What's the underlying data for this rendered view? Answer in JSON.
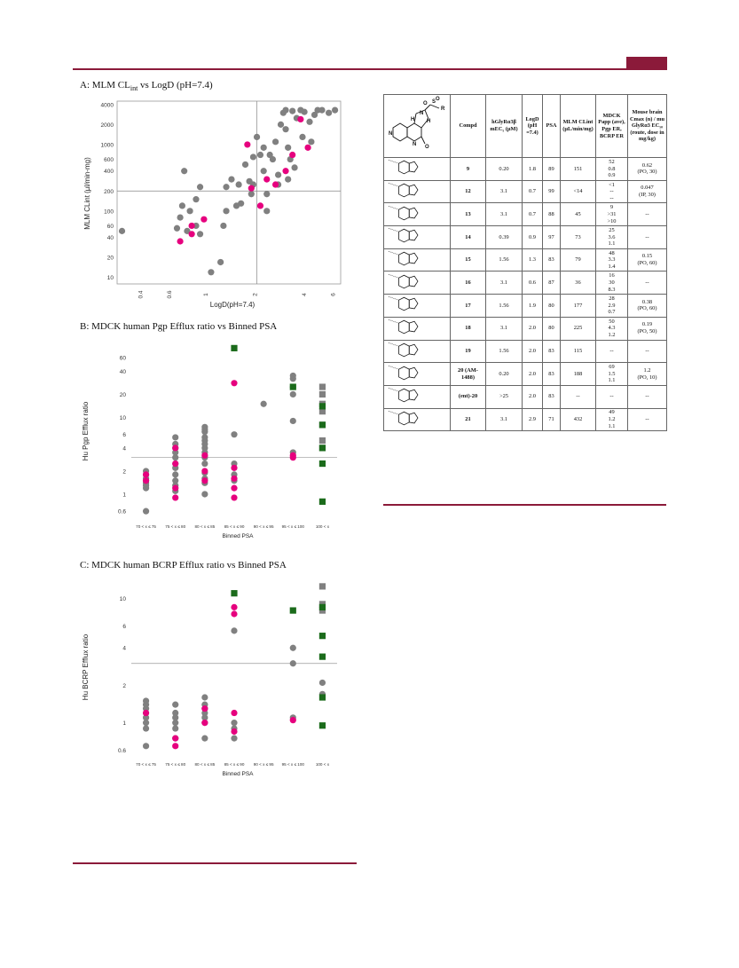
{
  "panels": {
    "a_title_prefix": "A: MLM CL",
    "a_title_sub": "int",
    "a_title_suffix": " vs LogD (pH=7.4)",
    "b_title": "B: MDCK human Pgp Efflux ratio vs Binned PSA",
    "c_title": "C: MDCK human BCRP Efflux ratio vs Binned PSA"
  },
  "chart_data": [
    {
      "type": "scatter",
      "title": "A: MLM CLint vs LogD (pH=7.4)",
      "xlabel": "LogD(pH=7.4)",
      "ylabel": "MLM CLint (µl/min-mg)",
      "xscale": "log",
      "yscale": "log",
      "xlim": [
        0.28,
        6.5
      ],
      "ylim": [
        8,
        4500
      ],
      "xticks": [
        "0.4",
        "0.6",
        "1",
        "2",
        "4",
        "6"
      ],
      "yticks": [
        "10",
        "20",
        "40",
        "60",
        "100",
        "200",
        "400",
        "600",
        "1000",
        "2000",
        "4000"
      ],
      "threshold_x": 2,
      "threshold_y": 200,
      "colors": {
        "reference": "#808080",
        "highlight": "#e6007e"
      },
      "series": [
        {
          "marker": "circle",
          "color": "#808080",
          "points": [
            [
              0.3,
              50
            ],
            [
              0.72,
              400
            ],
            [
              0.7,
              120
            ],
            [
              0.68,
              80
            ],
            [
              0.65,
              55
            ],
            [
              0.75,
              50
            ],
            [
              0.78,
              100
            ],
            [
              0.85,
              150
            ],
            [
              0.9,
              230
            ],
            [
              0.85,
              60
            ],
            [
              0.9,
              45
            ],
            [
              1.05,
              12
            ],
            [
              1.2,
              17
            ],
            [
              1.25,
              60
            ],
            [
              1.3,
              100
            ],
            [
              1.3,
              230
            ],
            [
              1.4,
              300
            ],
            [
              1.5,
              120
            ],
            [
              1.55,
              250
            ],
            [
              1.7,
              500
            ],
            [
              1.8,
              280
            ],
            [
              1.85,
              180
            ],
            [
              1.9,
              650
            ],
            [
              2.0,
              1300
            ],
            [
              2.1,
              700
            ],
            [
              2.2,
              400
            ],
            [
              2.3,
              180
            ],
            [
              2.3,
              100
            ],
            [
              2.5,
              600
            ],
            [
              2.6,
              1100
            ],
            [
              2.7,
              250
            ],
            [
              2.7,
              350
            ],
            [
              2.8,
              2000
            ],
            [
              2.9,
              3000
            ],
            [
              3.0,
              3300
            ],
            [
              3.0,
              1700
            ],
            [
              3.1,
              900
            ],
            [
              3.2,
              600
            ],
            [
              3.3,
              3200
            ],
            [
              3.5,
              2500
            ],
            [
              3.7,
              3300
            ],
            [
              3.8,
              1300
            ],
            [
              3.9,
              3100
            ],
            [
              4.2,
              2200
            ],
            [
              4.3,
              1100
            ],
            [
              4.5,
              2800
            ],
            [
              4.7,
              3300
            ],
            [
              5.0,
              3300
            ],
            [
              5.5,
              3000
            ],
            [
              6.0,
              3300
            ],
            [
              3.4,
              450
            ],
            [
              2.4,
              700
            ],
            [
              2.2,
              900
            ],
            [
              3.1,
              300
            ],
            [
              1.9,
              250
            ],
            [
              1.6,
              130
            ]
          ]
        },
        {
          "marker": "circle",
          "color": "#e6007e",
          "points": [
            [
              0.68,
              35
            ],
            [
              0.8,
              45
            ],
            [
              0.8,
              60
            ],
            [
              0.95,
              75
            ],
            [
              1.75,
              1000
            ],
            [
              1.85,
              220
            ],
            [
              2.1,
              120
            ],
            [
              2.3,
              300
            ],
            [
              2.6,
              250
            ],
            [
              3.0,
              400
            ],
            [
              3.3,
              700
            ],
            [
              3.7,
              2400
            ],
            [
              4.1,
              900
            ]
          ]
        }
      ]
    },
    {
      "type": "scatter",
      "title": "B: MDCK human Pgp Efflux ratio vs Binned PSA",
      "xlabel": "Binned PSA",
      "ylabel": "Hu Pgp Efflux ratio",
      "yscale": "log",
      "ylim": [
        0.5,
        100
      ],
      "yticks": [
        "0.6",
        "1",
        "2",
        "4",
        "6",
        "10",
        "20",
        "40",
        "60"
      ],
      "categories": [
        "70 < x ≤ 75",
        "75 < x ≤ 80",
        "80 < x ≤ 85",
        "85 < x ≤ 90",
        "90 < x ≤ 95",
        "95 < x ≤ 100",
        "100 < x"
      ],
      "threshold_y": 3,
      "series": [
        {
          "marker": "circle",
          "color": "#808080",
          "points": [
            [
              0,
              2.0
            ],
            [
              0,
              1.8
            ],
            [
              0,
              1.6
            ],
            [
              0,
              1.5
            ],
            [
              0,
              1.4
            ],
            [
              0,
              1.3
            ],
            [
              0,
              1.2
            ],
            [
              0,
              0.6
            ],
            [
              1,
              5.5
            ],
            [
              1,
              4.5
            ],
            [
              1,
              4.0
            ],
            [
              1,
              3.5
            ],
            [
              1,
              3.0
            ],
            [
              1,
              2.5
            ],
            [
              1,
              2.2
            ],
            [
              1,
              1.8
            ],
            [
              1,
              1.5
            ],
            [
              1,
              1.3
            ],
            [
              1,
              1.1
            ],
            [
              2,
              7.5
            ],
            [
              2,
              7.0
            ],
            [
              2,
              6.5
            ],
            [
              2,
              5.5
            ],
            [
              2,
              5.0
            ],
            [
              2,
              4.5
            ],
            [
              2,
              4.0
            ],
            [
              2,
              3.5
            ],
            [
              2,
              3.0
            ],
            [
              2,
              2.5
            ],
            [
              2,
              1.9
            ],
            [
              2,
              1.6
            ],
            [
              2,
              1.4
            ],
            [
              2,
              1.0
            ],
            [
              3,
              6.0
            ],
            [
              3,
              2.5
            ],
            [
              3,
              1.8
            ],
            [
              3,
              1.5
            ],
            [
              4,
              15
            ],
            [
              5,
              35
            ],
            [
              5,
              32
            ],
            [
              5,
              25
            ],
            [
              5,
              20
            ],
            [
              5,
              9
            ],
            [
              5,
              3.5
            ]
          ]
        },
        {
          "marker": "circle",
          "color": "#e6007e",
          "points": [
            [
              0,
              1.8
            ],
            [
              0,
              1.5
            ],
            [
              1,
              4.0
            ],
            [
              1,
              2.5
            ],
            [
              1,
              1.2
            ],
            [
              1,
              0.9
            ],
            [
              2,
              3.2
            ],
            [
              2,
              2.0
            ],
            [
              2,
              1.5
            ],
            [
              3,
              28
            ],
            [
              3,
              2.2
            ],
            [
              3,
              1.6
            ],
            [
              3,
              1.2
            ],
            [
              3,
              0.9
            ],
            [
              5,
              3.2
            ],
            [
              5,
              3.0
            ]
          ]
        },
        {
          "marker": "square",
          "color": "#808080",
          "points": [
            [
              6,
              25
            ],
            [
              6,
              20
            ],
            [
              6,
              15
            ],
            [
              6,
              12
            ],
            [
              6,
              8
            ],
            [
              6,
              5
            ],
            [
              6,
              4
            ]
          ]
        },
        {
          "marker": "square",
          "color": "#1b6b1b",
          "points": [
            [
              3,
              80
            ],
            [
              5,
              25
            ],
            [
              6,
              14
            ],
            [
              6,
              8
            ],
            [
              6,
              4
            ],
            [
              6,
              2.5
            ],
            [
              6,
              0.8
            ]
          ]
        }
      ]
    },
    {
      "type": "scatter",
      "title": "C: MDCK human BCRP Efflux ratio vs Binned PSA",
      "xlabel": "Binned PSA",
      "ylabel": "Hu BCRP Efflux ratio",
      "yscale": "log",
      "ylim": [
        0.55,
        14
      ],
      "yticks": [
        "0.6",
        "1",
        "2",
        "4",
        "6",
        "10"
      ],
      "categories": [
        "70 < x ≤ 75",
        "75 < x ≤ 80",
        "80 < x ≤ 85",
        "85 < x ≤ 90",
        "90 < x ≤ 95",
        "95 < x ≤ 100",
        "100 < x"
      ],
      "threshold_y": 3,
      "series": [
        {
          "marker": "circle",
          "color": "#808080",
          "points": [
            [
              0,
              1.5
            ],
            [
              0,
              1.4
            ],
            [
              0,
              1.3
            ],
            [
              0,
              1.2
            ],
            [
              0,
              1.1
            ],
            [
              0,
              1.0
            ],
            [
              0,
              0.9
            ],
            [
              0,
              0.65
            ],
            [
              1,
              1.4
            ],
            [
              1,
              1.2
            ],
            [
              1,
              1.1
            ],
            [
              1,
              1.0
            ],
            [
              1,
              0.9
            ],
            [
              1,
              0.75
            ],
            [
              2,
              1.6
            ],
            [
              2,
              1.4
            ],
            [
              2,
              1.3
            ],
            [
              2,
              1.2
            ],
            [
              2,
              1.1
            ],
            [
              2,
              1.0
            ],
            [
              2,
              0.75
            ],
            [
              3,
              5.5
            ],
            [
              3,
              1.0
            ],
            [
              3,
              0.9
            ],
            [
              3,
              0.75
            ],
            [
              5,
              4.0
            ],
            [
              5,
              3.0
            ],
            [
              5,
              1.1
            ],
            [
              6,
              8.5
            ],
            [
              6,
              2.1
            ],
            [
              6,
              1.7
            ]
          ]
        },
        {
          "marker": "circle",
          "color": "#e6007e",
          "points": [
            [
              0,
              1.2
            ],
            [
              1,
              0.75
            ],
            [
              1,
              0.65
            ],
            [
              2,
              1.3
            ],
            [
              2,
              1.0
            ],
            [
              3,
              8.5
            ],
            [
              3,
              7.5
            ],
            [
              3,
              1.2
            ],
            [
              3,
              0.85
            ],
            [
              5,
              1.05
            ]
          ]
        },
        {
          "marker": "square",
          "color": "#808080",
          "points": [
            [
              6,
              12.5
            ],
            [
              6,
              9
            ],
            [
              6,
              8
            ]
          ]
        },
        {
          "marker": "square",
          "color": "#1b6b1b",
          "points": [
            [
              3,
              11
            ],
            [
              5,
              8
            ],
            [
              6,
              8.5
            ],
            [
              6,
              5
            ],
            [
              6,
              3.4
            ],
            [
              6,
              1.6
            ],
            [
              6,
              0.95
            ]
          ]
        }
      ]
    }
  ],
  "table": {
    "headers": [
      "Compd",
      "hGlyRα3β mEC₅ (µM)",
      "LogD (pH =7.4)",
      "PSA",
      "MLM CLint (µL/min/mg)",
      "MDCK Papp (ave), Pgp ER, BCRP ER",
      "Mouse brain Cmax (n) / mu GlyRα3 EC₅₀ (route, dose in mg/kg)"
    ],
    "rows": [
      {
        "id": "9",
        "ec": "0.20",
        "logd": "1.8",
        "psa": "89",
        "clint": "151",
        "mdck": [
          "52",
          "0.8",
          "0.9"
        ],
        "brain": [
          "0.62",
          "(PO, 30)"
        ]
      },
      {
        "id": "12",
        "ec": "3.1",
        "logd": "0.7",
        "psa": "99",
        "clint": "<14",
        "mdck": [
          "<1",
          "--",
          "--"
        ],
        "brain": [
          "0.047",
          "(IP, 30)"
        ]
      },
      {
        "id": "13",
        "ec": "3.1",
        "logd": "0.7",
        "psa": "88",
        "clint": "45",
        "mdck": [
          "9",
          ">31",
          ">10"
        ],
        "brain": [
          "--"
        ]
      },
      {
        "id": "14",
        "ec": "0.39",
        "logd": "0.9",
        "psa": "97",
        "clint": "73",
        "mdck": [
          "25",
          "3.6",
          "1.1"
        ],
        "brain": [
          "--"
        ]
      },
      {
        "id": "15",
        "ec": "1.56",
        "logd": "1.3",
        "psa": "83",
        "clint": "79",
        "mdck": [
          "48",
          "3.3",
          "1.4"
        ],
        "brain": [
          "0.15",
          "(PO, 60)"
        ]
      },
      {
        "id": "16",
        "ec": "3.1",
        "logd": "0.6",
        "psa": "87",
        "clint": "36",
        "mdck": [
          "16",
          "30",
          "8.3"
        ],
        "brain": [
          "--"
        ]
      },
      {
        "id": "17",
        "ec": "1.56",
        "logd": "1.9",
        "psa": "80",
        "clint": "177",
        "mdck": [
          "28",
          "2.9",
          "0.7"
        ],
        "brain": [
          "0.38",
          "(PO, 60)"
        ]
      },
      {
        "id": "18",
        "ec": "3.1",
        "logd": "2.0",
        "psa": "80",
        "clint": "225",
        "mdck": [
          "50",
          "4.3",
          "1.2"
        ],
        "brain": [
          "0.19",
          "(PO, 50)"
        ]
      },
      {
        "id": "19",
        "ec": "1.56",
        "logd": "2.0",
        "psa": "83",
        "clint": "115",
        "mdck": [
          "--"
        ],
        "brain": [
          "--"
        ]
      },
      {
        "id": "20 (AM-1488)",
        "ec": "0.20",
        "logd": "2.0",
        "psa": "83",
        "clint": "188",
        "mdck": [
          "69",
          "1.5",
          "1.1"
        ],
        "brain": [
          "1.2",
          "(PO, 10)"
        ]
      },
      {
        "id": "(ent)-20",
        "ec": ">25",
        "logd": "2.0",
        "psa": "83",
        "clint": "--",
        "mdck": [
          "--"
        ],
        "brain": [
          "--"
        ]
      },
      {
        "id": "21",
        "ec": "3.1",
        "logd": "2.9",
        "psa": "71",
        "clint": "432",
        "mdck": [
          "49",
          "1.2",
          "1.1"
        ],
        "brain": [
          "--"
        ]
      }
    ]
  }
}
